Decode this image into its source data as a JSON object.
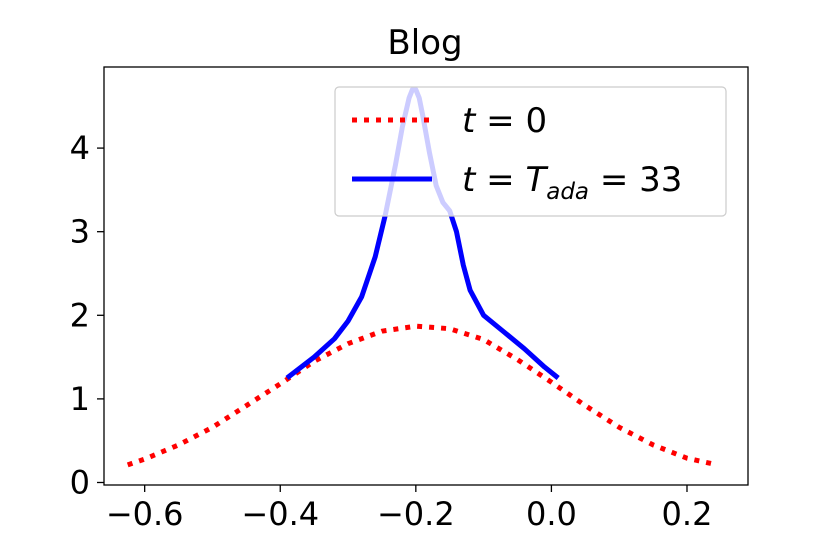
{
  "chart_data": {
    "type": "line",
    "title": "Blog",
    "xlabel": "",
    "ylabel": "",
    "xlim": [
      -0.66,
      0.29
    ],
    "ylim": [
      -0.03,
      4.97
    ],
    "xticks": [
      {
        "value": -0.6,
        "label": "−0.6"
      },
      {
        "value": -0.4,
        "label": "−0.4"
      },
      {
        "value": -0.2,
        "label": "−0.2"
      },
      {
        "value": 0.0,
        "label": "0.0"
      },
      {
        "value": 0.2,
        "label": "0.2"
      }
    ],
    "yticks": [
      {
        "value": 0,
        "label": "0"
      },
      {
        "value": 1,
        "label": "1"
      },
      {
        "value": 2,
        "label": "2"
      },
      {
        "value": 3,
        "label": "3"
      },
      {
        "value": 4,
        "label": "4"
      }
    ],
    "grid": false,
    "legend_position": "top-right",
    "series": [
      {
        "id": "t0",
        "legend": {
          "t": "t",
          "eq": " = 0"
        },
        "color": "#ff0000",
        "style": "dotted",
        "x": [
          -0.625,
          -0.6,
          -0.55,
          -0.5,
          -0.45,
          -0.4,
          -0.35,
          -0.3,
          -0.25,
          -0.2,
          -0.15,
          -0.1,
          -0.05,
          0.0,
          0.05,
          0.1,
          0.15,
          0.2,
          0.245
        ],
        "y": [
          0.21,
          0.28,
          0.45,
          0.66,
          0.92,
          1.18,
          1.45,
          1.66,
          1.81,
          1.87,
          1.84,
          1.71,
          1.47,
          1.2,
          0.92,
          0.66,
          0.45,
          0.29,
          0.21
        ]
      },
      {
        "id": "tada",
        "legend": {
          "t": "t",
          "eq1": " = ",
          "T": "T",
          "sub": "ada",
          "eq2": " = 33"
        },
        "color": "#0000ff",
        "style": "solid",
        "x": [
          -0.39,
          -0.35,
          -0.32,
          -0.3,
          -0.28,
          -0.26,
          -0.245,
          -0.23,
          -0.22,
          -0.21,
          -0.205,
          -0.2,
          -0.195,
          -0.19,
          -0.18,
          -0.17,
          -0.16,
          -0.15,
          -0.14,
          -0.13,
          -0.12,
          -0.1,
          -0.07,
          -0.04,
          -0.01,
          0.01
        ],
        "y": [
          1.25,
          1.5,
          1.72,
          1.93,
          2.22,
          2.7,
          3.2,
          3.8,
          4.25,
          4.6,
          4.7,
          4.7,
          4.6,
          4.4,
          3.95,
          3.55,
          3.35,
          3.25,
          3.0,
          2.6,
          2.3,
          2.0,
          1.8,
          1.6,
          1.38,
          1.25
        ]
      }
    ]
  }
}
